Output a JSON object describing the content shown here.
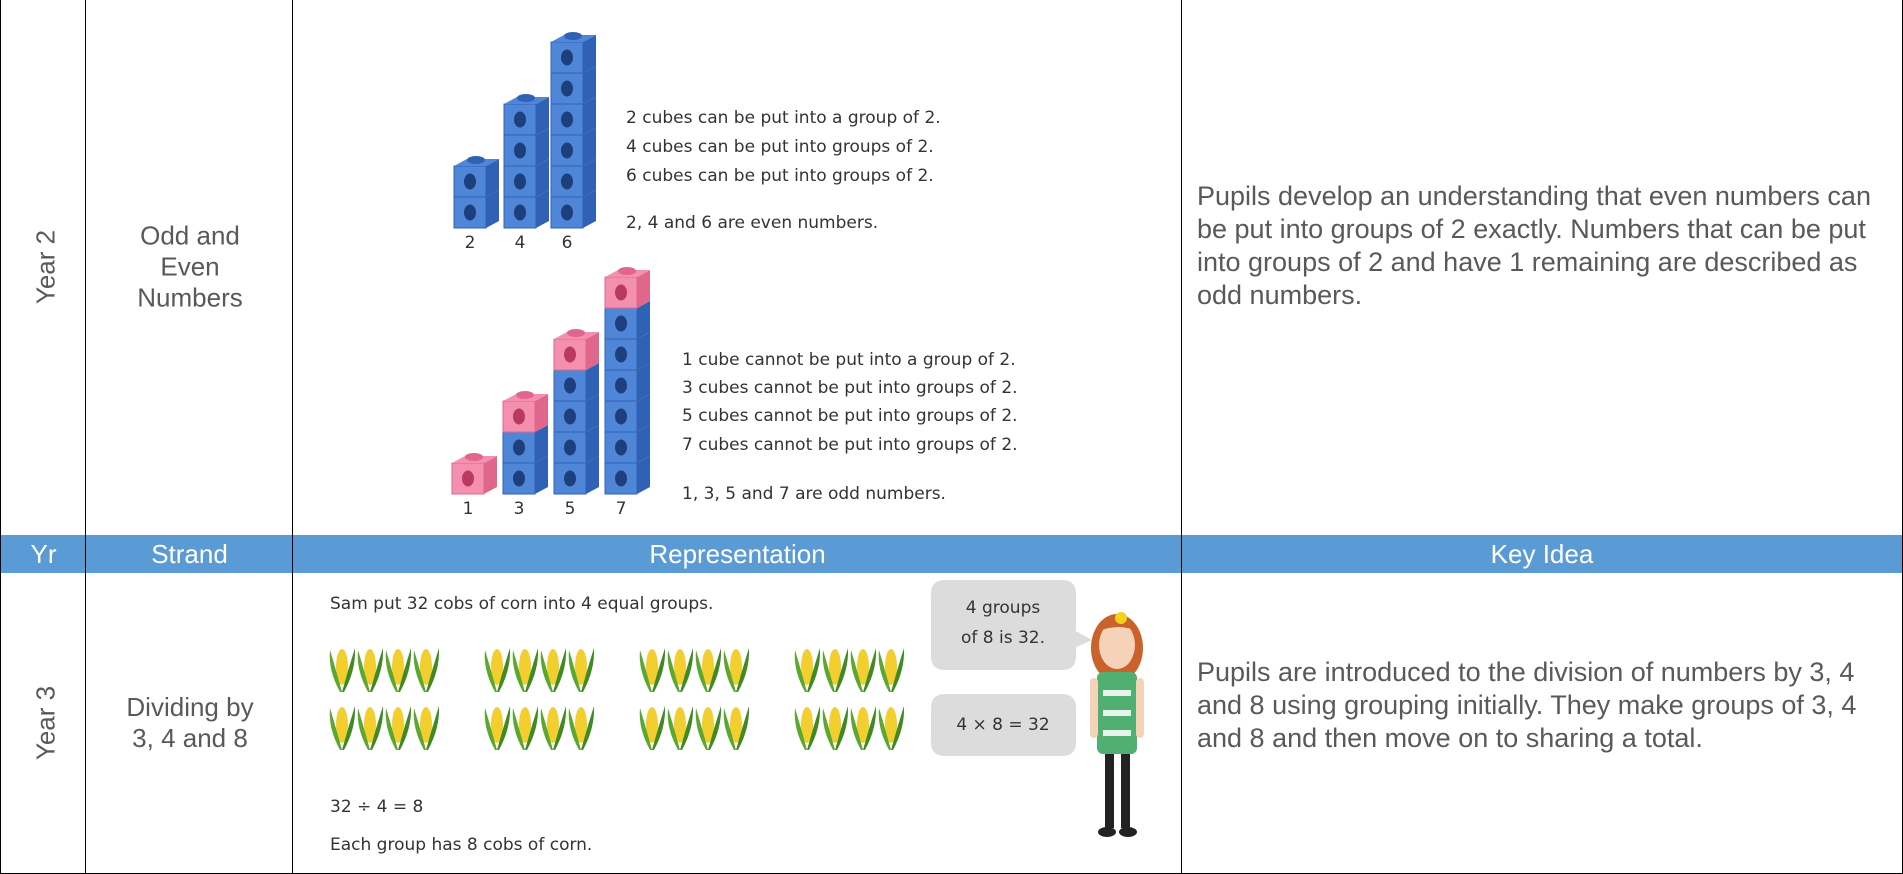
{
  "header": {
    "cells": [
      "Yr",
      "Strand",
      "Representation",
      "Key Idea"
    ]
  },
  "rows": [
    {
      "year": "Year 2",
      "strand": "Odd and Even Numbers",
      "representation": {
        "even_statements": [
          "2 cubes can be put into a group of 2.",
          "4 cubes can be put into groups of 2.",
          "6 cubes can be put into groups of 2."
        ],
        "even_conclusion": "2, 4 and 6 are even numbers.",
        "even_labels": [
          "2",
          "4",
          "6"
        ],
        "odd_statements": [
          "1 cube cannot be put into a group of 2.",
          "3 cubes cannot be put into groups of 2.",
          "5 cubes cannot be put into groups of 2.",
          "7 cubes cannot be put into groups of 2."
        ],
        "odd_conclusion": "1, 3, 5 and 7 are odd numbers.",
        "odd_labels": [
          "1",
          "3",
          "5",
          "7"
        ]
      },
      "key_idea": "Pupils develop an understanding that even numbers can be put into groups of 2 exactly. Numbers that can be put into groups of 2 and have 1 remaining are described as odd numbers."
    },
    {
      "year": "Year 3",
      "strand": "Dividing by 3, 4 and 8",
      "representation": {
        "problem": "Sam put 32 cobs of corn into 4 equal groups.",
        "speech": [
          "4 groups",
          "of 8 is 32."
        ],
        "equation_bubble": "4 × 8 = 32",
        "equation": "32 ÷ 4 = 8",
        "answer": "Each group has 8 cobs of corn."
      },
      "key_idea": "Pupils are introduced to the division of numbers by 3, 4 and 8 using grouping initially. They make groups of 3, 4 and 8 and then move on to sharing a total."
    }
  ]
}
